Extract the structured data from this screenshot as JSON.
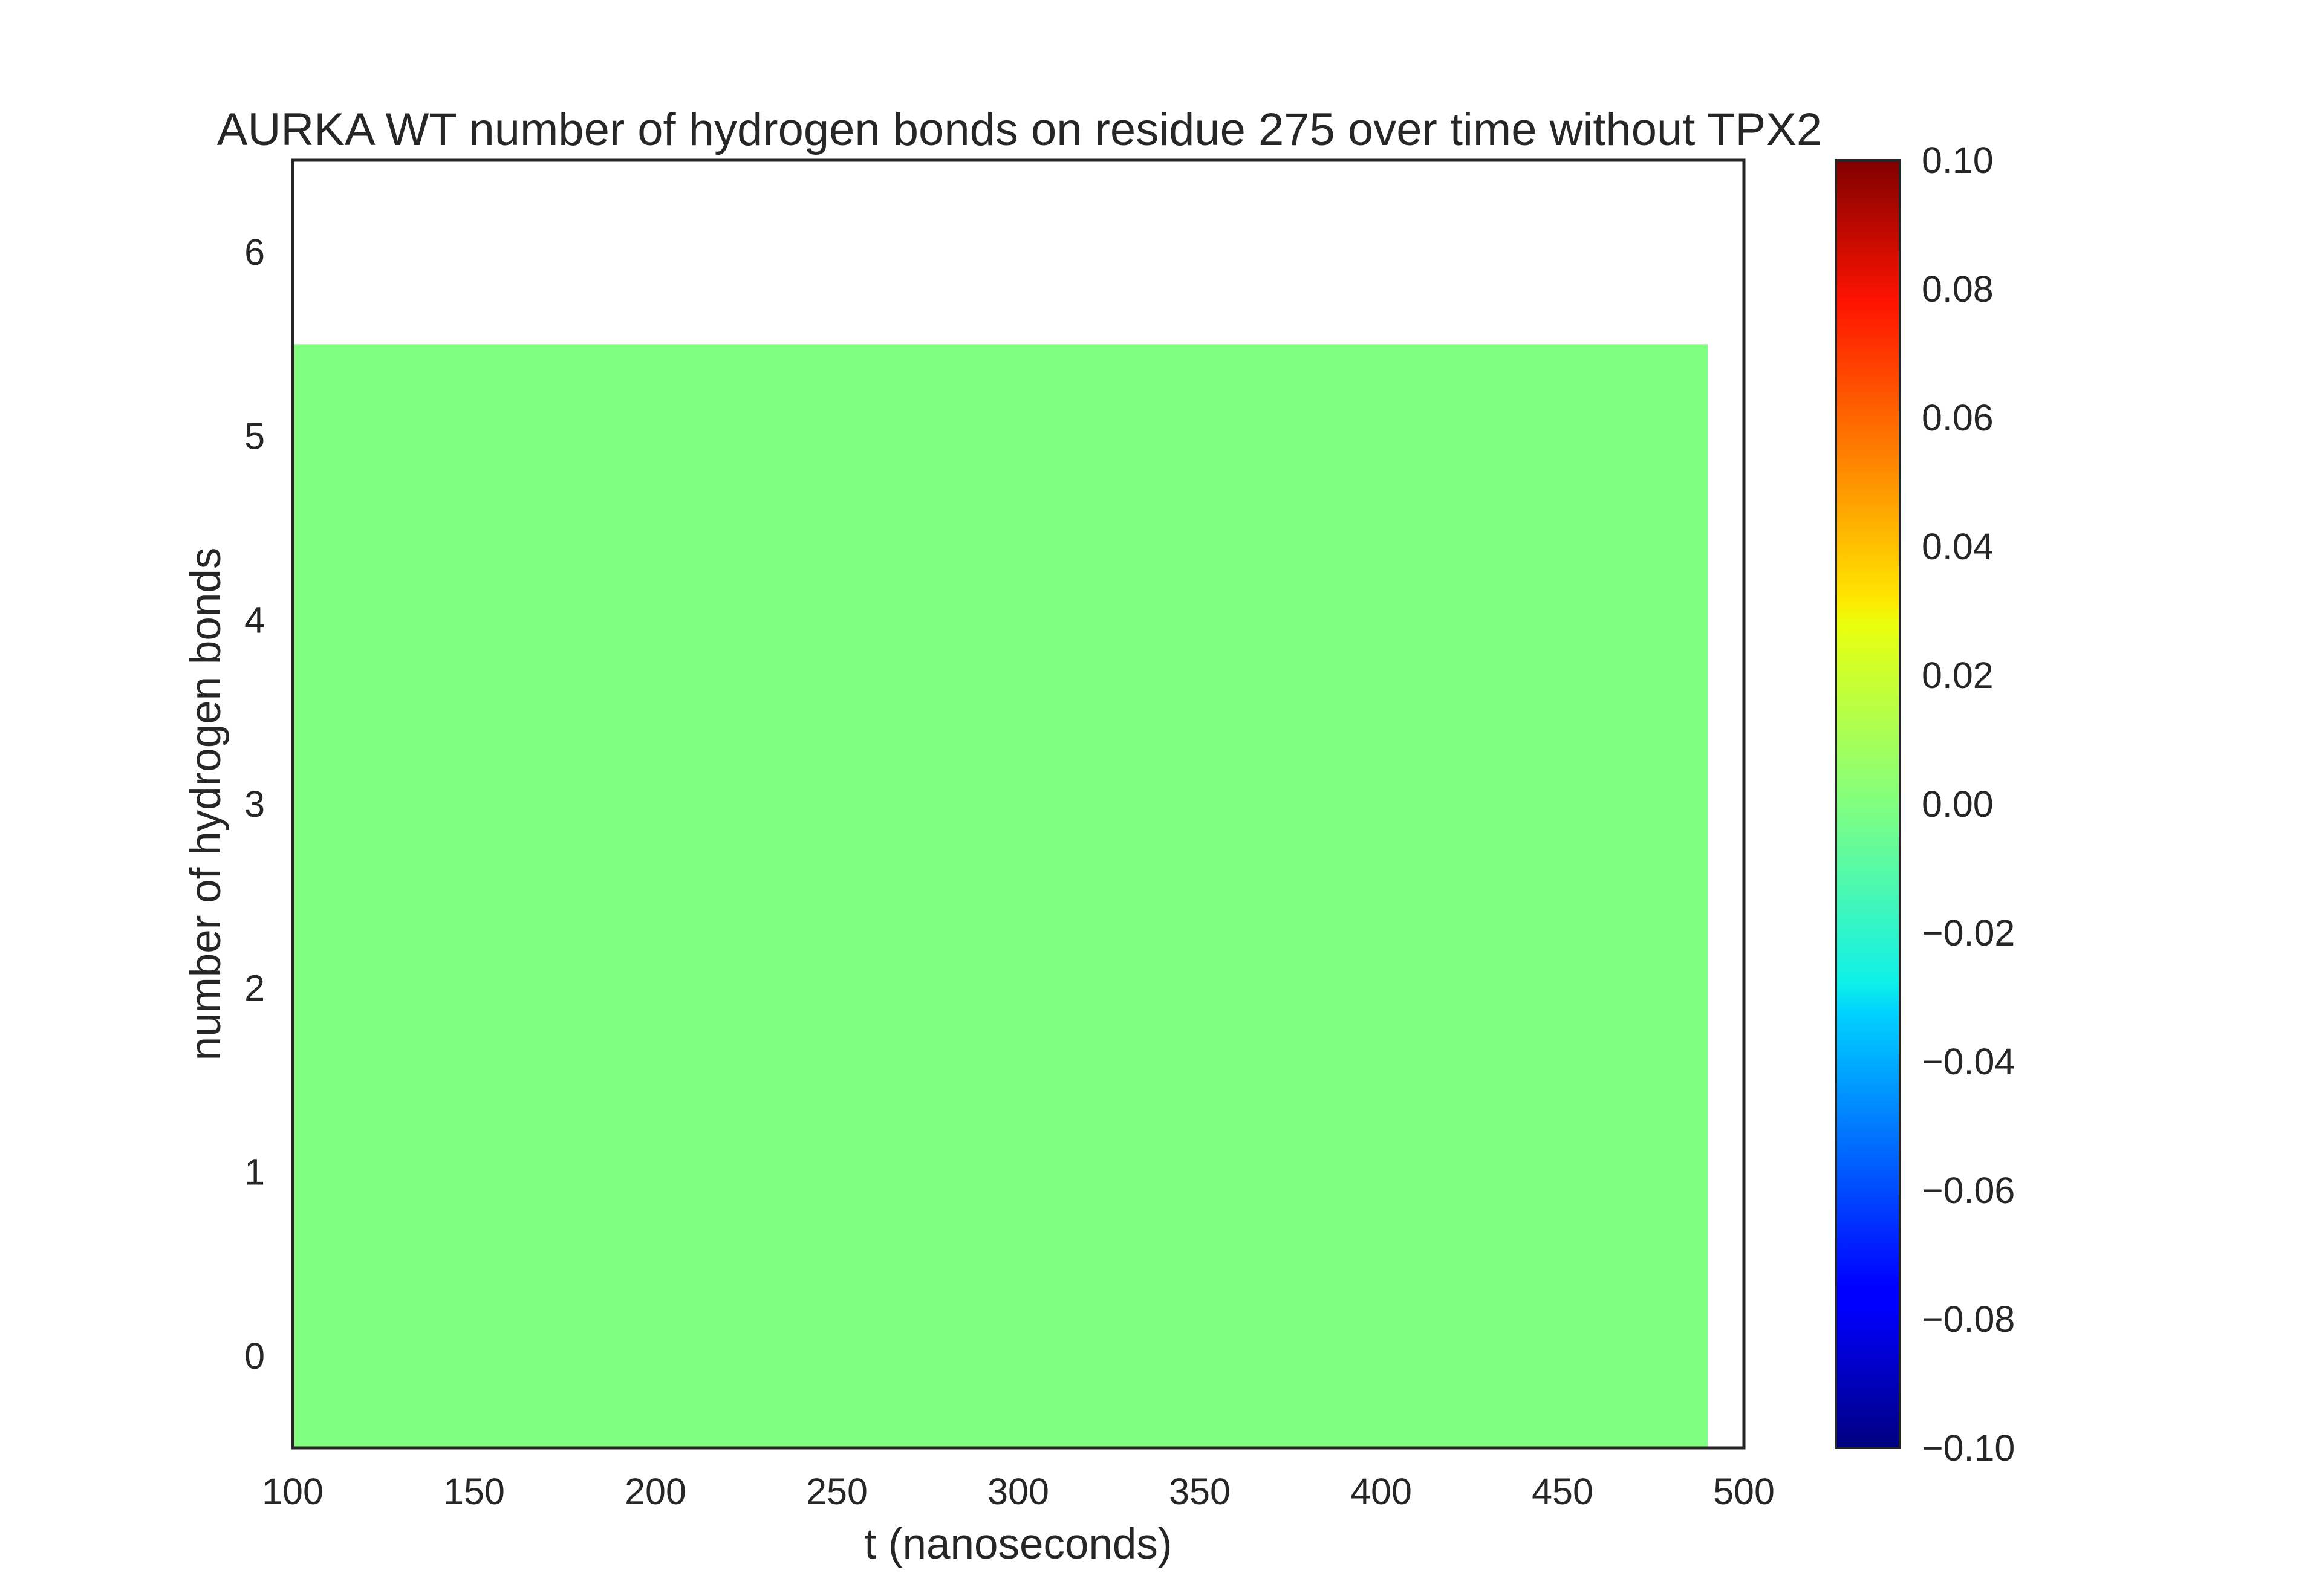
{
  "chart_data": {
    "type": "heatmap",
    "title": "AURKA WT number of hydrogen bonds on residue 275 over time without TPX2",
    "xlabel": "t (nanoseconds)",
    "ylabel": "number of hydrogen bonds",
    "xlim": [
      100,
      500
    ],
    "ylim": [
      -0.5,
      6.5
    ],
    "xticks": [
      100,
      150,
      200,
      250,
      300,
      350,
      400,
      450,
      500
    ],
    "xtick_labels": [
      "100",
      "150",
      "200",
      "250",
      "300",
      "350",
      "400",
      "450",
      "500"
    ],
    "yticks": [
      0,
      1,
      2,
      3,
      4,
      5,
      6
    ],
    "ytick_labels": [
      "0",
      "1",
      "2",
      "3",
      "4",
      "5",
      "6"
    ],
    "cells": [
      {
        "x_start": 100,
        "x_end": 490,
        "y_start": -0.5,
        "y_end": 5.5,
        "value": 0.0
      }
    ],
    "cell_color": "#80ff80",
    "colorbar": {
      "colormap": "jet",
      "range": [
        -0.1,
        0.1
      ],
      "ticks": [
        0.1,
        0.08,
        0.06,
        0.04,
        0.02,
        0.0,
        -0.02,
        -0.04,
        -0.06,
        -0.08,
        -0.1
      ],
      "tick_labels": [
        "0.10",
        "0.08",
        "0.06",
        "0.04",
        "0.02",
        "0.00",
        "−0.02",
        "−0.04",
        "−0.06",
        "−0.08",
        "−0.10"
      ]
    },
    "grid": false
  }
}
